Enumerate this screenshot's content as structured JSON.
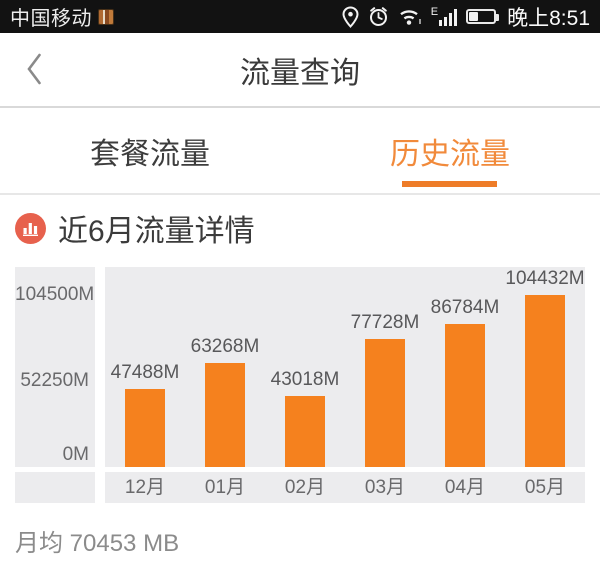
{
  "status_bar": {
    "carrier": "中国移动",
    "network_type": "E",
    "time": "晚上8:51"
  },
  "header": {
    "title": "流量查询"
  },
  "tabs": [
    {
      "label": "套餐流量",
      "active": false
    },
    {
      "label": "历史流量",
      "active": true
    }
  ],
  "section": {
    "title": "近6月流量详情"
  },
  "chart_data": {
    "type": "bar",
    "title": "近6月流量详情",
    "categories": [
      "12月",
      "01月",
      "02月",
      "03月",
      "04月",
      "05月"
    ],
    "values": [
      47488,
      63268,
      43018,
      77728,
      86784,
      104432
    ],
    "value_labels": [
      "47488M",
      "63268M",
      "43018M",
      "77728M",
      "86784M",
      "104432M"
    ],
    "y_ticks": [
      {
        "label": "104500M",
        "value": 104500
      },
      {
        "label": "52250M",
        "value": 52250
      },
      {
        "label": "0M",
        "value": 0
      }
    ],
    "ylim": [
      0,
      104500
    ],
    "unit": "M",
    "bar_color": "#f5811e",
    "plot_bg": "#ececee",
    "legend": null,
    "grid": false
  },
  "footer": {
    "monthly_average": "月均 70453 MB"
  },
  "colors": {
    "accent_orange": "#f5811e",
    "tab_active_text": "#f18a3b",
    "tab_underline": "#ee7c28",
    "section_icon_bg": "#e7614d",
    "chart_bg": "#ececee",
    "status_bar_bg": "#121212"
  }
}
